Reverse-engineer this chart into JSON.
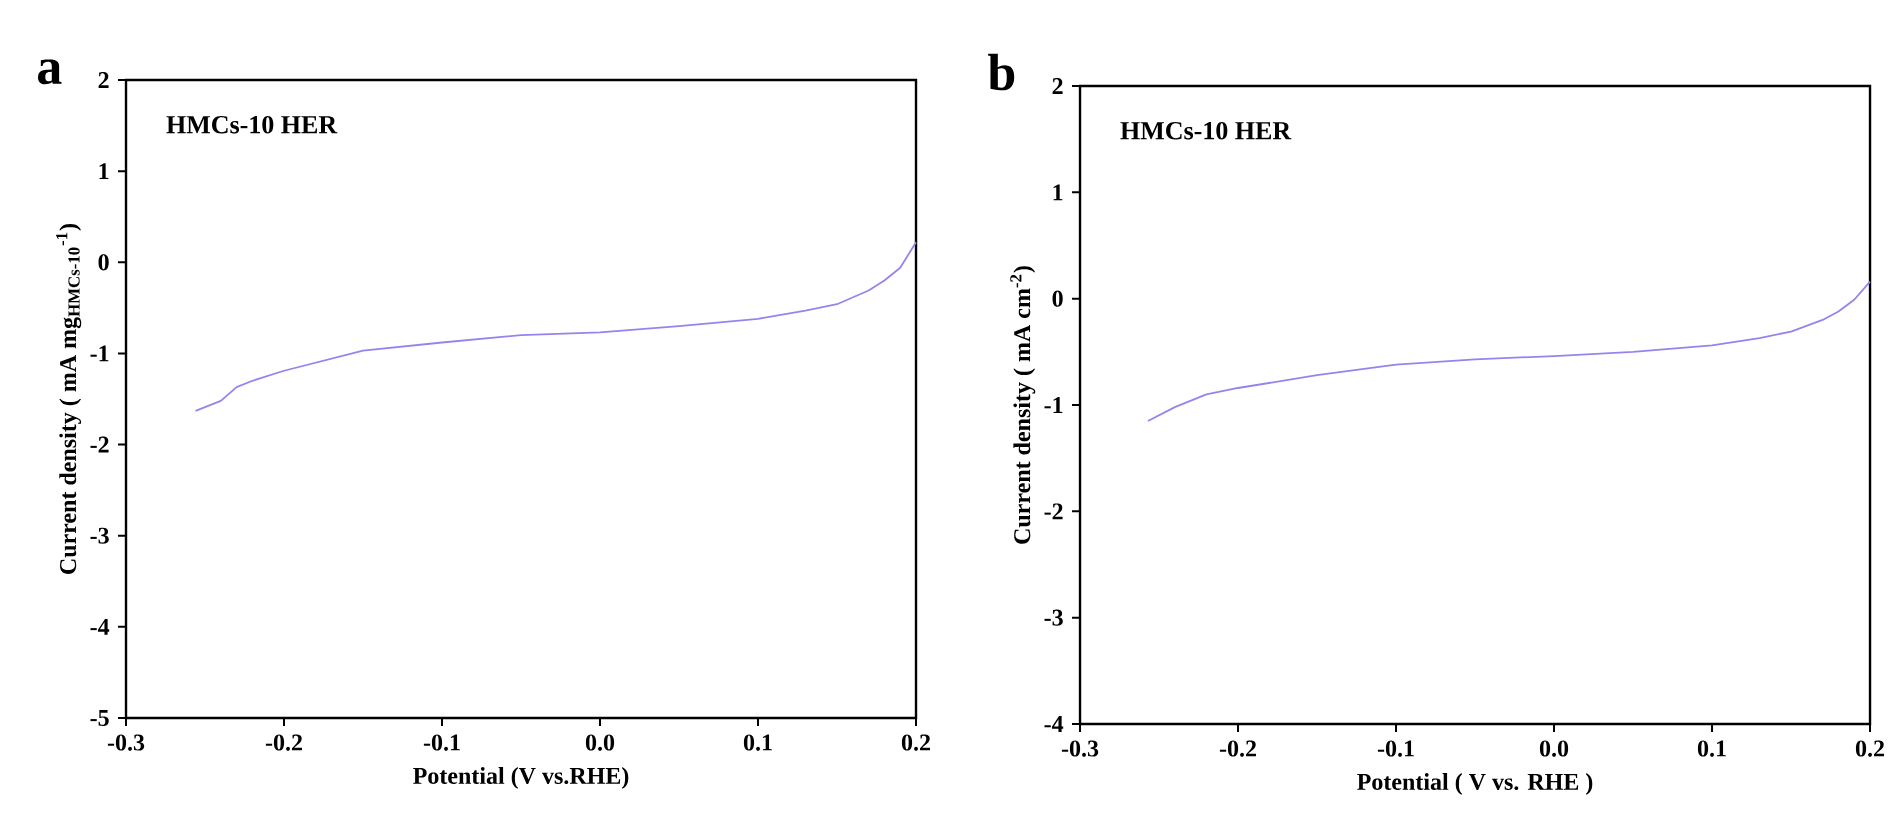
{
  "chart_data": [
    {
      "type": "line",
      "title": "a",
      "xlabel": "Potential (V vs.RHE)",
      "ylabel": "Current density ( mA mg$_{HMCs-10}$$^{-1}$)",
      "annotations": [
        "HMCs-10 HER"
      ],
      "xlim": [
        -0.3,
        0.2
      ],
      "ylim": [
        -5,
        2
      ],
      "xticks": [
        -0.3,
        -0.2,
        -0.1,
        {
          "value": 0,
          "label": "0.0"
        },
        0.1,
        0.2
      ],
      "yticks": [
        -5,
        -4,
        -3,
        -2,
        -1,
        0,
        1,
        2
      ],
      "series": [
        {
          "color": "#9a82ee",
          "x": [
            -0.256,
            -0.24,
            -0.23,
            -0.22,
            -0.2,
            -0.15,
            -0.1,
            -0.05,
            0,
            0.05,
            0.1,
            0.13,
            0.15,
            0.17,
            0.18,
            0.19,
            0.2
          ],
          "values": [
            -1.63,
            -1.52,
            -1.37,
            -1.3,
            -1.19,
            -0.97,
            -0.88,
            -0.8,
            -0.77,
            -0.7,
            -0.62,
            -0.53,
            -0.46,
            -0.31,
            -0.2,
            -0.06,
            0.22
          ]
        }
      ]
    },
    {
      "type": "line",
      "title": "b",
      "xlabel": "Potential ( V vs. RHE )",
      "ylabel": "Current density ( mA cm$^{-2}$)",
      "annotations": [
        "HMCs-10 HER"
      ],
      "xlim": [
        -0.3,
        0.2
      ],
      "ylim": [
        -4,
        2
      ],
      "xticks": [
        -0.3,
        -0.2,
        -0.1,
        {
          "value": 0,
          "label": "0.0"
        },
        0.1,
        0.2
      ],
      "yticks": [
        -4,
        -3,
        -2,
        -1,
        0,
        1,
        2
      ],
      "series": [
        {
          "color": "#9a82ee",
          "x": [
            -0.257,
            -0.24,
            -0.22,
            -0.2,
            -0.15,
            -0.1,
            -0.05,
            0,
            0.05,
            0.1,
            0.13,
            0.15,
            0.17,
            0.18,
            0.19,
            0.2
          ],
          "values": [
            -1.15,
            -1.02,
            -0.9,
            -0.84,
            -0.72,
            -0.62,
            -0.57,
            -0.54,
            -0.5,
            -0.44,
            -0.37,
            -0.31,
            -0.2,
            -0.12,
            -0.01,
            0.16
          ]
        }
      ]
    }
  ]
}
